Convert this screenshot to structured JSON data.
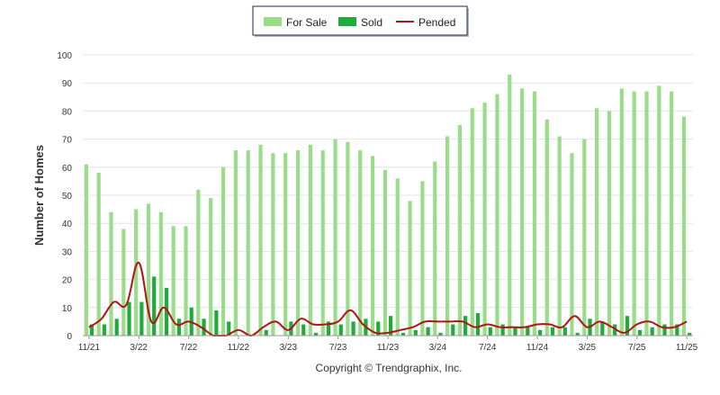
{
  "chart_data": {
    "type": "bar",
    "ylabel": "Number of Homes",
    "footer": "Copyright © Trendgraphix, Inc.",
    "ylim": [
      0,
      100
    ],
    "yticks": [
      0,
      10,
      20,
      30,
      40,
      50,
      60,
      70,
      80,
      90,
      100
    ],
    "grid": true,
    "legend_position": "top-center",
    "x_tick_labels": [
      {
        "month_index": 0,
        "label": "11/21"
      },
      {
        "month_index": 4,
        "label": "3/22"
      },
      {
        "month_index": 8,
        "label": "7/22"
      },
      {
        "month_index": 12,
        "label": "11/22"
      },
      {
        "month_index": 16,
        "label": "3/23"
      },
      {
        "month_index": 20,
        "label": "7/23"
      },
      {
        "month_index": 24,
        "label": "11/23"
      },
      {
        "month_index": 28,
        "label": "3/24"
      },
      {
        "month_index": 32,
        "label": "7/24"
      },
      {
        "month_index": 36,
        "label": "11/24"
      },
      {
        "month_index": 40,
        "label": "3/25"
      },
      {
        "month_index": 44,
        "label": "7/25"
      },
      {
        "month_index": 48,
        "label": "11/25"
      }
    ],
    "categories": [
      "11/21",
      "12/21",
      "1/22",
      "2/22",
      "3/22",
      "4/22",
      "5/22",
      "6/22",
      "7/22",
      "8/22",
      "9/22",
      "10/22",
      "11/22",
      "12/22",
      "1/23",
      "2/23",
      "3/23",
      "4/23",
      "5/23",
      "6/23",
      "7/23",
      "8/23",
      "9/23",
      "10/23",
      "11/23",
      "12/23",
      "1/24",
      "2/24",
      "3/24",
      "4/24",
      "5/24",
      "6/24",
      "7/24",
      "8/24",
      "9/24",
      "10/24",
      "11/24",
      "12/24",
      "1/25",
      "2/25",
      "3/25",
      "4/25",
      "5/25",
      "6/25",
      "7/25",
      "8/25",
      "9/25",
      "10/25",
      "11/25"
    ],
    "series": [
      {
        "name": "For Sale",
        "type": "bar",
        "color": "#9bdc8a",
        "values": [
          61,
          58,
          44,
          38,
          45,
          47,
          44,
          39,
          39,
          52,
          49,
          60,
          66,
          66,
          68,
          65,
          65,
          66,
          68,
          66,
          70,
          69,
          66,
          64,
          59,
          56,
          48,
          55,
          62,
          71,
          75,
          81,
          83,
          86,
          93,
          88,
          87,
          77,
          71,
          65,
          70,
          81,
          80,
          88,
          87,
          87,
          89,
          87,
          78
        ]
      },
      {
        "name": "Sold",
        "type": "bar",
        "color": "#1faa3a",
        "values": [
          4,
          4,
          6,
          12,
          12,
          21,
          17,
          6,
          10,
          6,
          9,
          5,
          0,
          0,
          2,
          0,
          5,
          4,
          1,
          5,
          4,
          5,
          6,
          5,
          7,
          1,
          2,
          3,
          1,
          4,
          7,
          8,
          3,
          4,
          3,
          3,
          2,
          3,
          3,
          1,
          6,
          5,
          4,
          7,
          2,
          3,
          4,
          4,
          1
        ]
      },
      {
        "name": "Pended",
        "type": "line",
        "color": "#b01515",
        "values": [
          3,
          6,
          12,
          11,
          26,
          5,
          10,
          4,
          5,
          3,
          0,
          0,
          2,
          0,
          3,
          5,
          2,
          6,
          4,
          4,
          5,
          9,
          4,
          1,
          1,
          2,
          3,
          5,
          5,
          5,
          5,
          3,
          4,
          3,
          3,
          3,
          4,
          4,
          3,
          7,
          3,
          5,
          3,
          1,
          4,
          5,
          3,
          3,
          5
        ]
      }
    ]
  }
}
